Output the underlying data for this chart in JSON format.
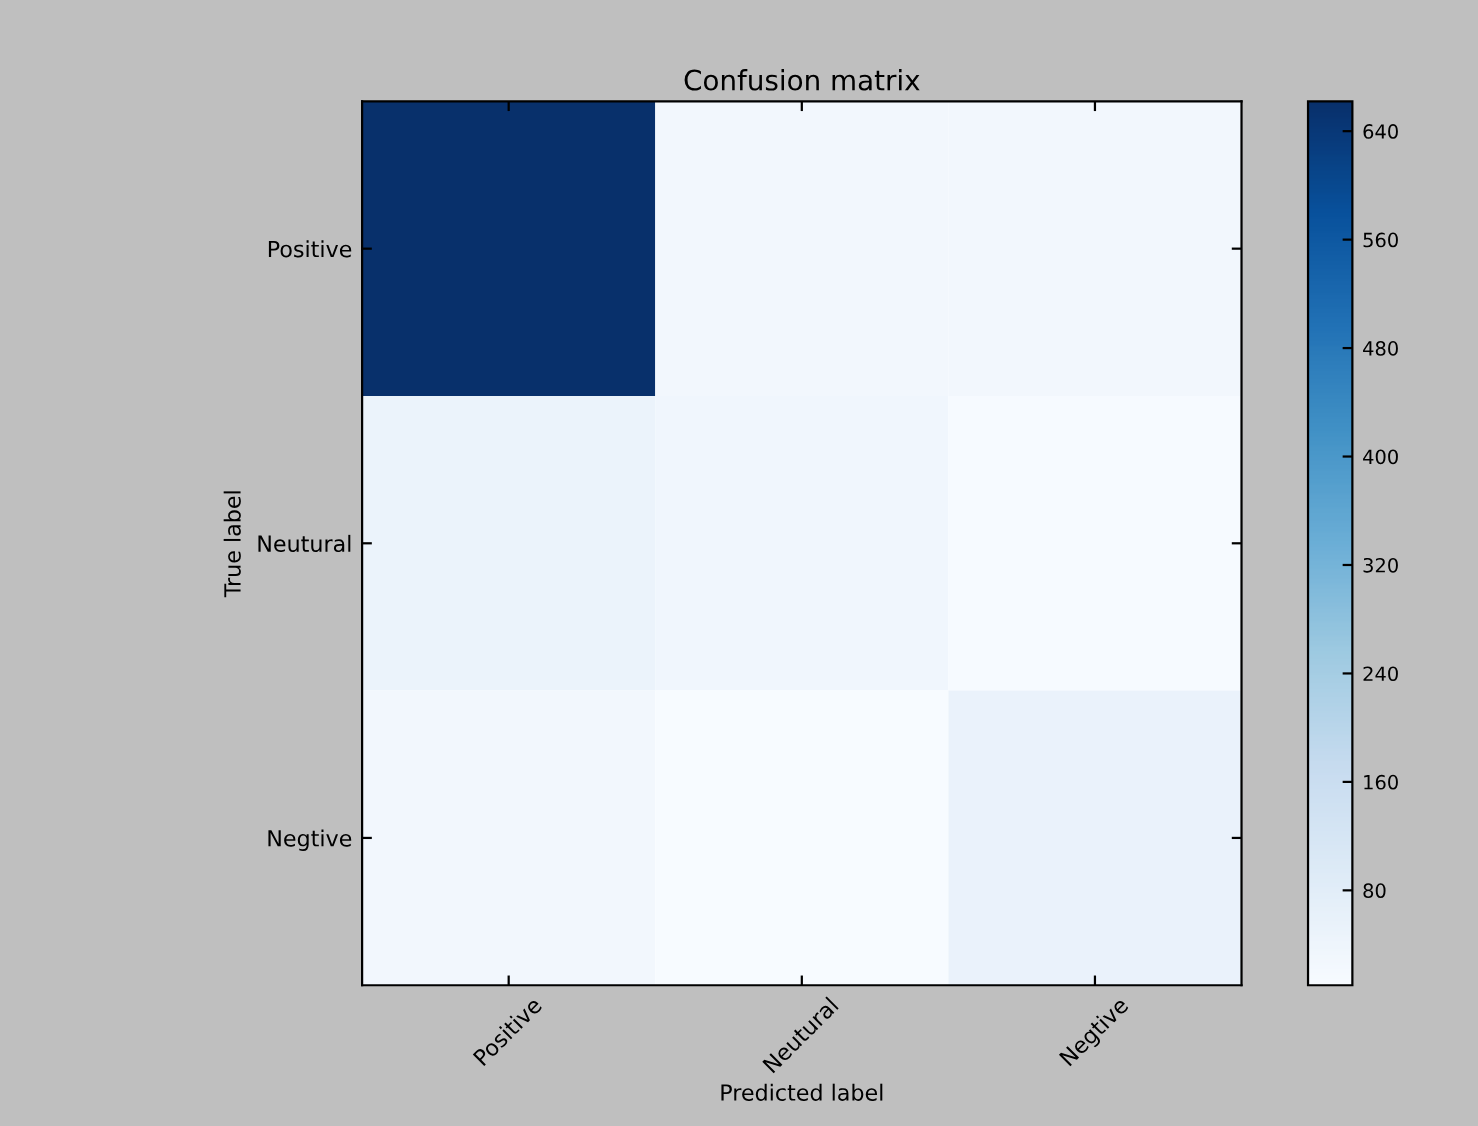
{
  "chart_data": {
    "type": "heatmap",
    "title": "Confusion matrix",
    "xlabel": "Predicted label",
    "ylabel": "True label",
    "categories": [
      "Positive",
      "Neutural",
      "Negtive"
    ],
    "y_categories": [
      "Positive",
      "Neutural",
      "Negtive"
    ],
    "cells": [
      [
        662,
        30,
        30
      ],
      [
        50,
        35,
        15
      ],
      [
        28,
        10,
        55
      ]
    ],
    "clim": [
      10,
      662
    ],
    "cticks": [
      80,
      160,
      240,
      320,
      400,
      480,
      560,
      640
    ]
  }
}
